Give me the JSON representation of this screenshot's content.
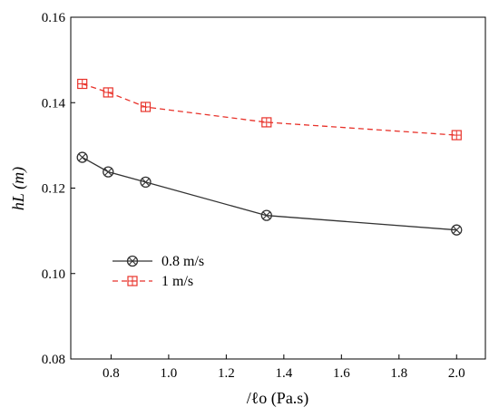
{
  "chart_data": {
    "type": "line",
    "title": "",
    "xlabel": "/ℓo (Pa.s)",
    "ylabel": "hL (m)",
    "xlim": [
      0.66,
      2.1
    ],
    "ylim": [
      0.08,
      0.16
    ],
    "xticks": [
      "0.8",
      "1.0",
      "1.2",
      "1.4",
      "1.6",
      "1.8",
      "2.0"
    ],
    "yticks": [
      "0.08",
      "0.10",
      "0.12",
      "0.14",
      "0.16"
    ],
    "grid": false,
    "legend_position": "lower-left",
    "series": [
      {
        "name": "0.8 m/s",
        "color": "#333333",
        "line_style": "solid",
        "marker": "circle-x",
        "x": [
          0.7,
          0.79,
          0.92,
          1.34,
          2.0
        ],
        "y": [
          0.1272,
          0.1238,
          0.1214,
          0.1136,
          0.1102
        ]
      },
      {
        "name": "1 m/s",
        "color": "#e8322a",
        "line_style": "dashed",
        "marker": "square-plus",
        "x": [
          0.7,
          0.79,
          0.92,
          1.34,
          2.0
        ],
        "y": [
          0.1444,
          0.1424,
          0.139,
          0.1354,
          0.1324
        ]
      }
    ]
  }
}
